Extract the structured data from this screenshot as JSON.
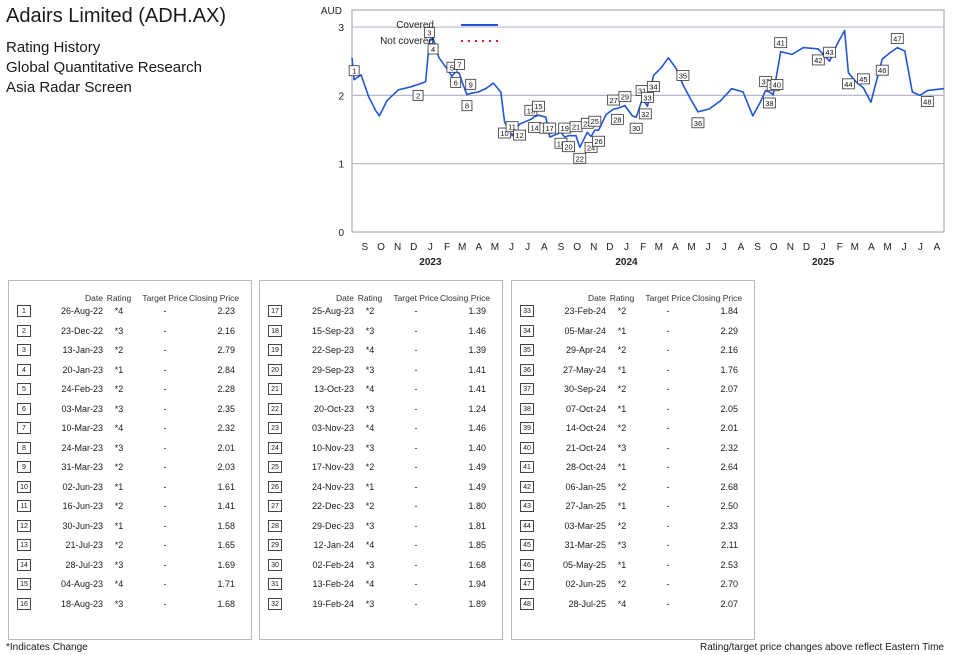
{
  "title": "Adairs Limited (ADH.AX)",
  "subtitles": [
    "Rating History",
    "Global Quantitative Research",
    "Asia Radar Screen"
  ],
  "colors": {
    "covered": "#2255d4",
    "not_covered": "#e02020",
    "grid": "#b5b8c8"
  },
  "chart_data": {
    "type": "line",
    "ylabel": "AUD",
    "ylim": [
      0,
      3.25
    ],
    "yticks": [
      0,
      1,
      2,
      3
    ],
    "grid": "horizontal",
    "legend": {
      "position": "top",
      "entries": [
        "Covered",
        "Not covered"
      ]
    },
    "xlim": [
      "2022-08-22",
      "2025-08-28"
    ],
    "month_labels": [
      "S",
      "O",
      "N",
      "D",
      "J",
      "F",
      "M",
      "A",
      "M",
      "J",
      "J",
      "A",
      "S",
      "O",
      "N",
      "D",
      "J",
      "F",
      "M",
      "A",
      "M",
      "J",
      "J",
      "A",
      "S",
      "O",
      "N",
      "D",
      "J",
      "F",
      "M",
      "A",
      "M",
      "J",
      "J",
      "A"
    ],
    "year_labels": [
      "2023",
      "2024",
      "2025"
    ],
    "series": [
      {
        "name": "Covered",
        "style": "solid",
        "points": [
          [
            "2022-08-22",
            2.55
          ],
          [
            "2022-08-26",
            2.23
          ],
          [
            "2022-09-08",
            2.3
          ],
          [
            "2022-09-22",
            1.98
          ],
          [
            "2022-10-05",
            1.78
          ],
          [
            "2022-10-12",
            1.7
          ],
          [
            "2022-10-26",
            1.92
          ],
          [
            "2022-11-16",
            2.08
          ],
          [
            "2022-12-07",
            2.12
          ],
          [
            "2022-12-23",
            2.16
          ],
          [
            "2023-01-06",
            2.2
          ],
          [
            "2023-01-13",
            2.79
          ],
          [
            "2023-01-20",
            2.84
          ],
          [
            "2023-01-31",
            2.55
          ],
          [
            "2023-02-14",
            2.4
          ],
          [
            "2023-02-24",
            2.28
          ],
          [
            "2023-03-03",
            2.35
          ],
          [
            "2023-03-10",
            2.32
          ],
          [
            "2023-03-17",
            2.15
          ],
          [
            "2023-03-24",
            2.01
          ],
          [
            "2023-03-31",
            2.03
          ],
          [
            "2023-04-14",
            2.05
          ],
          [
            "2023-04-28",
            2.1
          ],
          [
            "2023-05-12",
            2.18
          ],
          [
            "2023-05-26",
            2.05
          ],
          [
            "2023-06-02",
            1.61
          ],
          [
            "2023-06-16",
            1.41
          ],
          [
            "2023-06-30",
            1.58
          ],
          [
            "2023-07-21",
            1.65
          ],
          [
            "2023-07-28",
            1.69
          ],
          [
            "2023-08-04",
            1.71
          ],
          [
            "2023-08-18",
            1.68
          ],
          [
            "2023-08-25",
            1.39
          ],
          [
            "2023-09-15",
            1.46
          ],
          [
            "2023-09-22",
            1.39
          ],
          [
            "2023-09-29",
            1.41
          ],
          [
            "2023-10-13",
            1.41
          ],
          [
            "2023-10-20",
            1.24
          ],
          [
            "2023-11-03",
            1.46
          ],
          [
            "2023-11-10",
            1.4
          ],
          [
            "2023-11-17",
            1.49
          ],
          [
            "2023-11-24",
            1.49
          ],
          [
            "2023-12-08",
            1.72
          ],
          [
            "2023-12-22",
            1.8
          ],
          [
            "2023-12-29",
            1.81
          ],
          [
            "2024-01-12",
            1.85
          ],
          [
            "2024-01-26",
            1.7
          ],
          [
            "2024-02-02",
            1.68
          ],
          [
            "2024-02-13",
            1.94
          ],
          [
            "2024-02-19",
            1.89
          ],
          [
            "2024-02-23",
            1.84
          ],
          [
            "2024-03-05",
            2.29
          ],
          [
            "2024-03-19",
            2.4
          ],
          [
            "2024-04-02",
            2.55
          ],
          [
            "2024-04-16",
            2.4
          ],
          [
            "2024-04-29",
            2.16
          ],
          [
            "2024-05-13",
            1.95
          ],
          [
            "2024-05-27",
            1.76
          ],
          [
            "2024-06-17",
            1.8
          ],
          [
            "2024-07-08",
            1.92
          ],
          [
            "2024-07-29",
            2.1
          ],
          [
            "2024-08-19",
            2.05
          ],
          [
            "2024-09-06",
            1.7
          ],
          [
            "2024-09-20",
            1.9
          ],
          [
            "2024-09-30",
            2.07
          ],
          [
            "2024-10-07",
            2.05
          ],
          [
            "2024-10-14",
            2.01
          ],
          [
            "2024-10-21",
            2.32
          ],
          [
            "2024-10-28",
            2.64
          ],
          [
            "2024-11-18",
            2.6
          ],
          [
            "2024-12-09",
            2.7
          ],
          [
            "2025-01-06",
            2.68
          ],
          [
            "2025-01-27",
            2.5
          ],
          [
            "2025-02-10",
            2.75
          ],
          [
            "2025-02-24",
            2.95
          ],
          [
            "2025-03-03",
            2.33
          ],
          [
            "2025-03-17",
            2.2
          ],
          [
            "2025-03-31",
            2.11
          ],
          [
            "2025-04-14",
            1.9
          ],
          [
            "2025-05-05",
            2.53
          ],
          [
            "2025-05-19",
            2.62
          ],
          [
            "2025-06-02",
            2.7
          ],
          [
            "2025-06-16",
            2.65
          ],
          [
            "2025-06-30",
            2.05
          ],
          [
            "2025-07-14",
            2.0
          ],
          [
            "2025-07-28",
            2.07
          ],
          [
            "2025-08-28",
            2.1
          ]
        ]
      },
      {
        "name": "Not covered",
        "style": "dotted",
        "points": []
      }
    ],
    "markers": [
      {
        "n": 1,
        "date": "2022-08-26",
        "value": 2.23
      },
      {
        "n": 2,
        "date": "2022-12-23",
        "value": 2.16
      },
      {
        "n": 3,
        "date": "2023-01-13",
        "value": 2.79
      },
      {
        "n": 4,
        "date": "2023-01-20",
        "value": 2.84
      },
      {
        "n": 5,
        "date": "2023-02-24",
        "value": 2.28
      },
      {
        "n": 6,
        "date": "2023-03-03",
        "value": 2.35
      },
      {
        "n": 7,
        "date": "2023-03-10",
        "value": 2.32
      },
      {
        "n": 8,
        "date": "2023-03-24",
        "value": 2.01
      },
      {
        "n": 9,
        "date": "2023-03-31",
        "value": 2.03
      },
      {
        "n": 10,
        "date": "2023-06-02",
        "value": 1.61
      },
      {
        "n": 11,
        "date": "2023-06-16",
        "value": 1.41
      },
      {
        "n": 12,
        "date": "2023-06-30",
        "value": 1.58
      },
      {
        "n": 13,
        "date": "2023-07-21",
        "value": 1.65
      },
      {
        "n": 14,
        "date": "2023-07-28",
        "value": 1.69
      },
      {
        "n": 15,
        "date": "2023-08-04",
        "value": 1.71
      },
      {
        "n": 16,
        "date": "2023-08-18",
        "value": 1.68
      },
      {
        "n": 17,
        "date": "2023-08-25",
        "value": 1.39
      },
      {
        "n": 18,
        "date": "2023-09-15",
        "value": 1.46
      },
      {
        "n": 19,
        "date": "2023-09-22",
        "value": 1.39
      },
      {
        "n": 20,
        "date": "2023-09-29",
        "value": 1.41
      },
      {
        "n": 21,
        "date": "2023-10-13",
        "value": 1.41
      },
      {
        "n": 22,
        "date": "2023-10-20",
        "value": 1.24
      },
      {
        "n": 23,
        "date": "2023-11-03",
        "value": 1.46
      },
      {
        "n": 24,
        "date": "2023-11-10",
        "value": 1.4
      },
      {
        "n": 25,
        "date": "2023-11-17",
        "value": 1.49
      },
      {
        "n": 26,
        "date": "2023-11-24",
        "value": 1.49
      },
      {
        "n": 27,
        "date": "2023-12-22",
        "value": 1.8
      },
      {
        "n": 28,
        "date": "2023-12-29",
        "value": 1.81
      },
      {
        "n": 29,
        "date": "2024-01-12",
        "value": 1.85
      },
      {
        "n": 30,
        "date": "2024-02-02",
        "value": 1.68
      },
      {
        "n": 31,
        "date": "2024-02-13",
        "value": 1.94
      },
      {
        "n": 32,
        "date": "2024-02-19",
        "value": 1.89
      },
      {
        "n": 33,
        "date": "2024-02-23",
        "value": 1.84
      },
      {
        "n": 34,
        "date": "2024-03-05",
        "value": 2.29
      },
      {
        "n": 35,
        "date": "2024-04-29",
        "value": 2.16
      },
      {
        "n": 36,
        "date": "2024-05-27",
        "value": 1.76
      },
      {
        "n": 37,
        "date": "2024-09-30",
        "value": 2.07
      },
      {
        "n": 38,
        "date": "2024-10-07",
        "value": 2.05
      },
      {
        "n": 39,
        "date": "2024-10-14",
        "value": 2.01
      },
      {
        "n": 40,
        "date": "2024-10-21",
        "value": 2.32
      },
      {
        "n": 41,
        "date": "2024-10-28",
        "value": 2.64
      },
      {
        "n": 42,
        "date": "2025-01-06",
        "value": 2.68
      },
      {
        "n": 43,
        "date": "2025-01-27",
        "value": 2.5
      },
      {
        "n": 44,
        "date": "2025-03-03",
        "value": 2.33
      },
      {
        "n": 45,
        "date": "2025-03-31",
        "value": 2.11
      },
      {
        "n": 46,
        "date": "2025-05-05",
        "value": 2.53
      },
      {
        "n": 47,
        "date": "2025-06-02",
        "value": 2.7
      },
      {
        "n": 48,
        "date": "2025-07-28",
        "value": 2.07
      }
    ]
  },
  "table_headers": {
    "date": "Date",
    "rating": "Rating",
    "target_price": "Target Price",
    "closing_price": "Closing Price"
  },
  "tables": [
    [
      {
        "n": "1",
        "date": "26-Aug-22",
        "rating": "*4",
        "tp": "-",
        "cp": "2.23"
      },
      {
        "n": "2",
        "date": "23-Dec-22",
        "rating": "*3",
        "tp": "-",
        "cp": "2.16"
      },
      {
        "n": "3",
        "date": "13-Jan-23",
        "rating": "*2",
        "tp": "-",
        "cp": "2.79"
      },
      {
        "n": "4",
        "date": "20-Jan-23",
        "rating": "*1",
        "tp": "-",
        "cp": "2.84"
      },
      {
        "n": "5",
        "date": "24-Feb-23",
        "rating": "*2",
        "tp": "-",
        "cp": "2.28"
      },
      {
        "n": "6",
        "date": "03-Mar-23",
        "rating": "*3",
        "tp": "-",
        "cp": "2.35"
      },
      {
        "n": "7",
        "date": "10-Mar-23",
        "rating": "*4",
        "tp": "-",
        "cp": "2.32"
      },
      {
        "n": "8",
        "date": "24-Mar-23",
        "rating": "*3",
        "tp": "-",
        "cp": "2.01"
      },
      {
        "n": "9",
        "date": "31-Mar-23",
        "rating": "*2",
        "tp": "-",
        "cp": "2.03"
      },
      {
        "n": "10",
        "date": "02-Jun-23",
        "rating": "*1",
        "tp": "-",
        "cp": "1.61"
      },
      {
        "n": "11",
        "date": "16-Jun-23",
        "rating": "*2",
        "tp": "-",
        "cp": "1.41"
      },
      {
        "n": "12",
        "date": "30-Jun-23",
        "rating": "*1",
        "tp": "-",
        "cp": "1.58"
      },
      {
        "n": "13",
        "date": "21-Jul-23",
        "rating": "*2",
        "tp": "-",
        "cp": "1.65"
      },
      {
        "n": "14",
        "date": "28-Jul-23",
        "rating": "*3",
        "tp": "-",
        "cp": "1.69"
      },
      {
        "n": "15",
        "date": "04-Aug-23",
        "rating": "*4",
        "tp": "-",
        "cp": "1.71"
      },
      {
        "n": "16",
        "date": "18-Aug-23",
        "rating": "*3",
        "tp": "-",
        "cp": "1.68"
      }
    ],
    [
      {
        "n": "17",
        "date": "25-Aug-23",
        "rating": "*2",
        "tp": "-",
        "cp": "1.39"
      },
      {
        "n": "18",
        "date": "15-Sep-23",
        "rating": "*3",
        "tp": "-",
        "cp": "1.46"
      },
      {
        "n": "19",
        "date": "22-Sep-23",
        "rating": "*4",
        "tp": "-",
        "cp": "1.39"
      },
      {
        "n": "20",
        "date": "29-Sep-23",
        "rating": "*3",
        "tp": "-",
        "cp": "1.41"
      },
      {
        "n": "21",
        "date": "13-Oct-23",
        "rating": "*4",
        "tp": "-",
        "cp": "1.41"
      },
      {
        "n": "22",
        "date": "20-Oct-23",
        "rating": "*3",
        "tp": "-",
        "cp": "1.24"
      },
      {
        "n": "23",
        "date": "03-Nov-23",
        "rating": "*4",
        "tp": "-",
        "cp": "1.46"
      },
      {
        "n": "24",
        "date": "10-Nov-23",
        "rating": "*3",
        "tp": "-",
        "cp": "1.40"
      },
      {
        "n": "25",
        "date": "17-Nov-23",
        "rating": "*2",
        "tp": "-",
        "cp": "1.49"
      },
      {
        "n": "26",
        "date": "24-Nov-23",
        "rating": "*1",
        "tp": "-",
        "cp": "1.49"
      },
      {
        "n": "27",
        "date": "22-Dec-23",
        "rating": "*2",
        "tp": "-",
        "cp": "1.80"
      },
      {
        "n": "28",
        "date": "29-Dec-23",
        "rating": "*3",
        "tp": "-",
        "cp": "1.81"
      },
      {
        "n": "29",
        "date": "12-Jan-24",
        "rating": "*4",
        "tp": "-",
        "cp": "1.85"
      },
      {
        "n": "30",
        "date": "02-Feb-24",
        "rating": "*3",
        "tp": "-",
        "cp": "1.68"
      },
      {
        "n": "31",
        "date": "13-Feb-24",
        "rating": "*4",
        "tp": "-",
        "cp": "1.94"
      },
      {
        "n": "32",
        "date": "19-Feb-24",
        "rating": "*3",
        "tp": "-",
        "cp": "1.89"
      }
    ],
    [
      {
        "n": "33",
        "date": "23-Feb-24",
        "rating": "*2",
        "tp": "-",
        "cp": "1.84"
      },
      {
        "n": "34",
        "date": "05-Mar-24",
        "rating": "*1",
        "tp": "-",
        "cp": "2.29"
      },
      {
        "n": "35",
        "date": "29-Apr-24",
        "rating": "*2",
        "tp": "-",
        "cp": "2.16"
      },
      {
        "n": "36",
        "date": "27-May-24",
        "rating": "*1",
        "tp": "-",
        "cp": "1.76"
      },
      {
        "n": "37",
        "date": "30-Sep-24",
        "rating": "*2",
        "tp": "-",
        "cp": "2.07"
      },
      {
        "n": "38",
        "date": "07-Oct-24",
        "rating": "*1",
        "tp": "-",
        "cp": "2.05"
      },
      {
        "n": "39",
        "date": "14-Oct-24",
        "rating": "*2",
        "tp": "-",
        "cp": "2.01"
      },
      {
        "n": "40",
        "date": "21-Oct-24",
        "rating": "*3",
        "tp": "-",
        "cp": "2.32"
      },
      {
        "n": "41",
        "date": "28-Oct-24",
        "rating": "*1",
        "tp": "-",
        "cp": "2.64"
      },
      {
        "n": "42",
        "date": "06-Jan-25",
        "rating": "*2",
        "tp": "-",
        "cp": "2.68"
      },
      {
        "n": "43",
        "date": "27-Jan-25",
        "rating": "*1",
        "tp": "-",
        "cp": "2.50"
      },
      {
        "n": "44",
        "date": "03-Mar-25",
        "rating": "*2",
        "tp": "-",
        "cp": "2.33"
      },
      {
        "n": "45",
        "date": "31-Mar-25",
        "rating": "*3",
        "tp": "-",
        "cp": "2.11"
      },
      {
        "n": "46",
        "date": "05-May-25",
        "rating": "*1",
        "tp": "-",
        "cp": "2.53"
      },
      {
        "n": "47",
        "date": "02-Jun-25",
        "rating": "*2",
        "tp": "-",
        "cp": "2.70"
      },
      {
        "n": "48",
        "date": "28-Jul-25",
        "rating": "*4",
        "tp": "-",
        "cp": "2.07"
      }
    ]
  ],
  "footer_left": "*Indicates Change",
  "footer_right": "Rating/target price changes above reflect Eastern Time"
}
